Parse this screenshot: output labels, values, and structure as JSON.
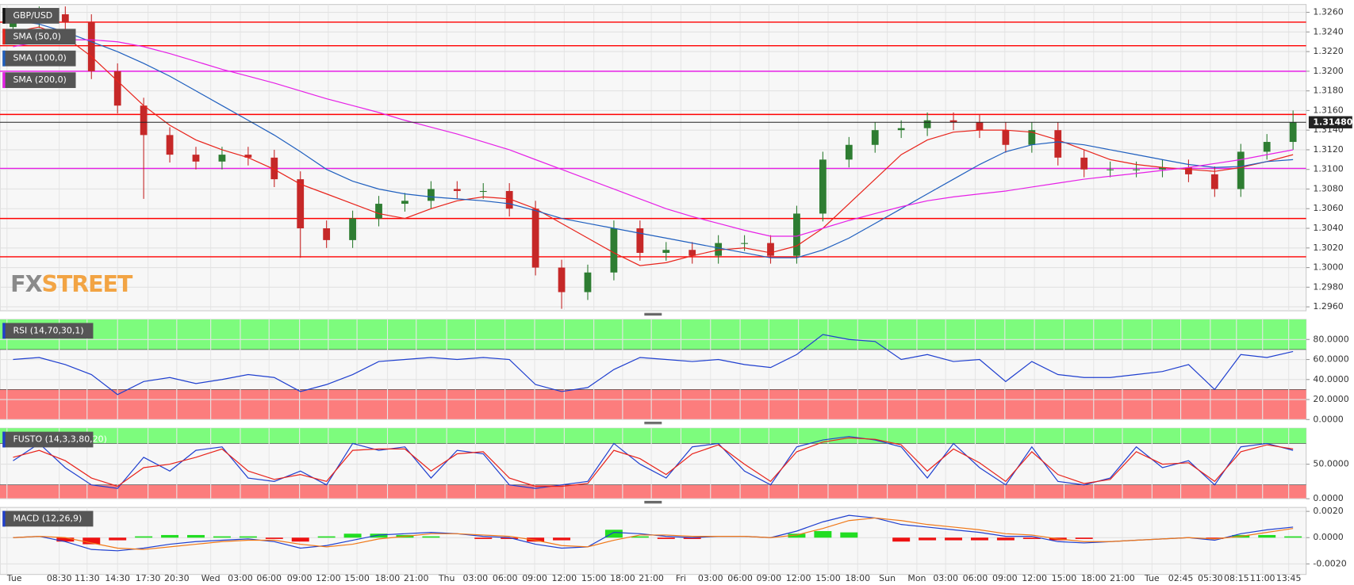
{
  "chart_data": [
    {
      "type": "candlestick",
      "title": "GBP/USD",
      "watermark": "FXSTREET",
      "time_labels": [
        "Tue",
        "08:30",
        "11:30",
        "14:30",
        "17:30",
        "20:30",
        "Wed",
        "03:00",
        "06:00",
        "09:00",
        "12:00",
        "15:00",
        "18:00",
        "21:00",
        "Thu",
        "03:00",
        "06:00",
        "09:00",
        "12:00",
        "15:00",
        "18:00",
        "21:00",
        "Fri",
        "03:00",
        "06:00",
        "09:00",
        "12:00",
        "15:00",
        "18:00",
        "Sun",
        "Mon",
        "03:00",
        "06:00",
        "09:00",
        "12:00",
        "15:00",
        "18:00",
        "21:00",
        "Tue",
        "02:45",
        "05:30",
        "08:15",
        "11:00",
        "13:45"
      ],
      "up_color": "#2e7d32",
      "down_color": "#c62828",
      "open": [
        1.3245,
        1.3252,
        1.3258,
        1.325,
        1.32,
        1.3165,
        1.3135,
        1.3115,
        1.3108,
        1.3115,
        1.3112,
        1.309,
        1.304,
        1.3028,
        1.305,
        1.3065,
        1.3068,
        1.308,
        1.3078,
        1.3078,
        1.306,
        1.3,
        1.2975,
        1.2995,
        1.304,
        1.3015,
        1.3018,
        1.3012,
        1.3025,
        1.3025,
        1.3012,
        1.3055,
        1.311,
        1.3125,
        1.314,
        1.3142,
        1.315,
        1.3148,
        1.314,
        1.3125,
        1.314,
        1.3112,
        1.31,
        1.31,
        1.31,
        1.3102,
        1.3095,
        1.308,
        1.3118,
        1.3128
      ],
      "high": [
        1.326,
        1.3266,
        1.3266,
        1.3258,
        1.3208,
        1.3173,
        1.3143,
        1.3123,
        1.3123,
        1.3123,
        1.312,
        1.3098,
        1.3048,
        1.3058,
        1.3073,
        1.3076,
        1.3088,
        1.3088,
        1.3086,
        1.3086,
        1.3068,
        1.3008,
        1.3003,
        1.3048,
        1.3048,
        1.3026,
        1.3026,
        1.3033,
        1.3033,
        1.3033,
        1.3063,
        1.3118,
        1.3133,
        1.3148,
        1.315,
        1.3158,
        1.3158,
        1.3156,
        1.3148,
        1.3148,
        1.3148,
        1.312,
        1.3108,
        1.3108,
        1.311,
        1.311,
        1.3103,
        1.3126,
        1.3136,
        1.316
      ],
      "low": [
        1.3237,
        1.3244,
        1.3242,
        1.3192,
        1.3157,
        1.307,
        1.3107,
        1.31,
        1.31,
        1.3104,
        1.3082,
        1.301,
        1.302,
        1.302,
        1.3042,
        1.3057,
        1.306,
        1.307,
        1.307,
        1.3052,
        1.2992,
        1.2958,
        1.2967,
        1.2987,
        1.3007,
        1.3007,
        1.3004,
        1.3004,
        1.3017,
        1.3004,
        1.3004,
        1.3047,
        1.3102,
        1.3117,
        1.3132,
        1.3134,
        1.314,
        1.3132,
        1.3117,
        1.3117,
        1.3104,
        1.3092,
        1.3092,
        1.3092,
        1.3092,
        1.3087,
        1.3072,
        1.3072,
        1.311,
        1.312
      ],
      "close": [
        1.3252,
        1.3258,
        1.325,
        1.32,
        1.3165,
        1.3135,
        1.3115,
        1.3108,
        1.3115,
        1.3112,
        1.309,
        1.304,
        1.3028,
        1.305,
        1.3065,
        1.3068,
        1.308,
        1.3078,
        1.3078,
        1.306,
        1.3,
        1.2975,
        1.2995,
        1.304,
        1.3015,
        1.3018,
        1.3012,
        1.3025,
        1.3025,
        1.3012,
        1.3055,
        1.311,
        1.3125,
        1.314,
        1.3142,
        1.315,
        1.3148,
        1.314,
        1.3125,
        1.314,
        1.3112,
        1.31,
        1.31,
        1.31,
        1.3102,
        1.3095,
        1.308,
        1.3118,
        1.3128,
        1.3148
      ],
      "series": [
        {
          "name": "SMA (50,0)",
          "color": "#e8231b",
          "values": [
            1.324,
            1.3245,
            1.3235,
            1.3215,
            1.319,
            1.3165,
            1.3145,
            1.313,
            1.312,
            1.3112,
            1.31,
            1.3085,
            1.3075,
            1.3065,
            1.3055,
            1.305,
            1.306,
            1.3068,
            1.3072,
            1.307,
            1.306,
            1.3045,
            1.303,
            1.3015,
            1.3002,
            1.3005,
            1.3012,
            1.3018,
            1.302,
            1.3015,
            1.3022,
            1.304,
            1.3065,
            1.309,
            1.3115,
            1.313,
            1.3138,
            1.314,
            1.314,
            1.3138,
            1.313,
            1.312,
            1.311,
            1.3105,
            1.3102,
            1.31,
            1.3098,
            1.3102,
            1.3108,
            1.3115
          ]
        },
        {
          "name": "SMA (100,0)",
          "color": "#1f5fbf",
          "values": [
            1.3252,
            1.3248,
            1.324,
            1.323,
            1.322,
            1.3208,
            1.3195,
            1.318,
            1.3165,
            1.315,
            1.3135,
            1.3118,
            1.31,
            1.3088,
            1.308,
            1.3075,
            1.3072,
            1.307,
            1.3068,
            1.3065,
            1.3058,
            1.305,
            1.3045,
            1.304,
            1.3035,
            1.303,
            1.3025,
            1.302,
            1.3015,
            1.301,
            1.301,
            1.3018,
            1.303,
            1.3045,
            1.306,
            1.3075,
            1.309,
            1.3105,
            1.3118,
            1.3125,
            1.3128,
            1.3125,
            1.312,
            1.3115,
            1.311,
            1.3105,
            1.3102,
            1.3103,
            1.3108,
            1.311
          ]
        },
        {
          "name": "SMA (200,0)",
          "color": "#e620e6",
          "values": [
            1.3225,
            1.323,
            1.3232,
            1.3232,
            1.323,
            1.3225,
            1.3218,
            1.321,
            1.3202,
            1.3195,
            1.3188,
            1.318,
            1.3172,
            1.3165,
            1.3158,
            1.315,
            1.3143,
            1.3136,
            1.3128,
            1.312,
            1.311,
            1.31,
            1.309,
            1.308,
            1.307,
            1.306,
            1.3052,
            1.3045,
            1.3038,
            1.3032,
            1.3032,
            1.304,
            1.3048,
            1.3055,
            1.3062,
            1.3068,
            1.3072,
            1.3075,
            1.3078,
            1.3082,
            1.3086,
            1.309,
            1.3093,
            1.3096,
            1.3099,
            1.3102,
            1.3106,
            1.311,
            1.3115,
            1.312
          ]
        }
      ],
      "levels": [
        {
          "value": 1.325,
          "color": "#ff0000"
        },
        {
          "value": 1.3226,
          "color": "#ff0000"
        },
        {
          "value": 1.32,
          "color": "#e620e6"
        },
        {
          "value": 1.3156,
          "color": "#ff0000"
        },
        {
          "value": 1.3101,
          "color": "#e620e6"
        },
        {
          "value": 1.305,
          "color": "#ff0000"
        },
        {
          "value": 1.3011,
          "color": "#ff0000"
        }
      ],
      "last_price": {
        "value": 1.3148,
        "label": "1.31480"
      },
      "ylim": [
        1.2956,
        1.3268
      ],
      "yticks": [
        {
          "value": 1.296,
          "label": "1.2960"
        },
        {
          "value": 1.298,
          "label": "1.2980"
        },
        {
          "value": 1.3,
          "label": "1.3000"
        },
        {
          "value": 1.302,
          "label": "1.3020"
        },
        {
          "value": 1.304,
          "label": "1.3040"
        },
        {
          "value": 1.306,
          "label": "1.3060"
        },
        {
          "value": 1.308,
          "label": "1.3080"
        },
        {
          "value": 1.31,
          "label": "1.3100"
        },
        {
          "value": 1.312,
          "label": "1.3120"
        },
        {
          "value": 1.314,
          "label": "1.3140"
        },
        {
          "value": 1.316,
          "label": "1.3160"
        },
        {
          "value": 1.318,
          "label": "1.3180"
        },
        {
          "value": 1.32,
          "label": "1.3200"
        },
        {
          "value": 1.322,
          "label": "1.3220"
        },
        {
          "value": 1.324,
          "label": "1.3240"
        },
        {
          "value": 1.326,
          "label": "1.3260"
        }
      ],
      "grid": true
    },
    {
      "type": "line",
      "title": "RSI (14,70,30,1)",
      "overbought": 70,
      "oversold": 30,
      "series": [
        {
          "color": "#1f3fcf",
          "values": [
            60,
            62,
            55,
            45,
            25,
            38,
            42,
            36,
            40,
            45,
            42,
            28,
            35,
            45,
            58,
            60,
            62,
            60,
            62,
            60,
            35,
            28,
            32,
            50,
            62,
            60,
            58,
            60,
            55,
            52,
            65,
            85,
            80,
            78,
            60,
            65,
            58,
            60,
            38,
            58,
            45,
            42,
            42,
            45,
            48,
            55,
            30,
            65,
            62,
            68
          ]
        }
      ],
      "ylim": [
        0,
        100
      ],
      "yticks": [
        {
          "value": 0,
          "label": "0.0000"
        },
        {
          "value": 20,
          "label": "20.0000"
        },
        {
          "value": 40,
          "label": "40.0000"
        },
        {
          "value": 60,
          "label": "60.0000"
        },
        {
          "value": 80,
          "label": "80.0000"
        }
      ],
      "grid": true
    },
    {
      "type": "line",
      "title": "FUSTO (14,3,3,80,20)",
      "overbought": 80,
      "oversold": 20,
      "series": [
        {
          "color": "#1f3fcf",
          "values": [
            55,
            80,
            45,
            20,
            15,
            60,
            40,
            70,
            75,
            30,
            25,
            40,
            20,
            80,
            70,
            75,
            30,
            70,
            65,
            20,
            15,
            20,
            25,
            80,
            50,
            30,
            75,
            80,
            40,
            20,
            75,
            85,
            90,
            85,
            75,
            30,
            80,
            45,
            20,
            75,
            25,
            20,
            30,
            75,
            45,
            55,
            20,
            75,
            80,
            70
          ]
        },
        {
          "color": "#e8231b",
          "values": [
            60,
            70,
            55,
            30,
            18,
            45,
            50,
            60,
            72,
            40,
            28,
            35,
            25,
            70,
            72,
            72,
            40,
            65,
            68,
            30,
            18,
            18,
            22,
            70,
            58,
            35,
            65,
            78,
            50,
            25,
            68,
            82,
            88,
            86,
            78,
            40,
            72,
            52,
            25,
            68,
            35,
            22,
            28,
            68,
            50,
            52,
            25,
            68,
            78,
            72
          ]
        }
      ],
      "ylim": [
        0,
        102
      ],
      "yticks": [
        {
          "value": 0,
          "label": "0.0000"
        },
        {
          "value": 50,
          "label": "50.0000"
        }
      ],
      "grid": true
    },
    {
      "type": "macd",
      "title": "MACD (12,26,9)",
      "up_color": "#22dd22",
      "down_color": "#ee1111",
      "histogram": [
        0,
        0,
        -0.0003,
        -0.0005,
        -0.0002,
        0.0001,
        0.0002,
        0.0002,
        0.0001,
        0.0001,
        -0.0001,
        -0.0003,
        0.0001,
        0.0003,
        0.0003,
        0.0002,
        0.0001,
        0,
        -0.0001,
        -0.0001,
        -0.0003,
        -0.0002,
        0,
        0.0006,
        0.0001,
        -0.0001,
        -0.0001,
        0,
        0,
        0,
        0.0003,
        0.0005,
        0.0004,
        0,
        -0.0003,
        -0.0002,
        -0.0002,
        -0.0002,
        -0.0002,
        -0.0001,
        -0.0002,
        -0.0001,
        0,
        0,
        0,
        0,
        -0.0001,
        0.0002,
        0.0002,
        0.0001
      ],
      "series": [
        {
          "color": "#1f3fcf",
          "values": [
            0,
            0.0001,
            -0.0003,
            -0.0009,
            -0.001,
            -0.0008,
            -0.0005,
            -0.0003,
            -0.0002,
            -0.0001,
            -0.0003,
            -0.0008,
            -0.0006,
            -0.0002,
            0.0002,
            0.0003,
            0.0004,
            0.0003,
            0.0001,
            0,
            -0.0005,
            -0.0008,
            -0.0007,
            0.0004,
            0.0003,
            0.0001,
            0,
            0.0001,
            0.0001,
            0,
            0.0005,
            0.0012,
            0.0017,
            0.0015,
            0.001,
            0.0008,
            0.0006,
            0.0004,
            0.0001,
            0.0001,
            -0.0003,
            -0.0004,
            -0.0003,
            -0.0002,
            -0.0001,
            0,
            -0.0002,
            0.0003,
            0.0006,
            0.0008
          ]
        },
        {
          "color": "#f07818",
          "values": [
            0,
            0.0001,
            0,
            -0.0004,
            -0.0008,
            -0.0009,
            -0.0007,
            -0.0005,
            -0.0003,
            -0.0002,
            -0.0002,
            -0.0005,
            -0.0007,
            -0.0005,
            -0.0001,
            0.0001,
            0.0003,
            0.0003,
            0.0002,
            0.0001,
            -0.0002,
            -0.0006,
            -0.0007,
            -0.0002,
            0.0002,
            0.0002,
            0.0001,
            0.0001,
            0.0001,
            0,
            0.0002,
            0.0007,
            0.0013,
            0.0015,
            0.0013,
            0.001,
            0.0008,
            0.0006,
            0.0003,
            0.0002,
            -0.0001,
            -0.0003,
            -0.0003,
            -0.0002,
            -0.0001,
            0,
            -0.0001,
            0.0001,
            0.0004,
            0.0007
          ]
        }
      ],
      "ylim": [
        -0.0028,
        0.0023
      ],
      "yticks": [
        {
          "value": -0.002,
          "label": "-0.0020"
        },
        {
          "value": 0,
          "label": "0.0000"
        },
        {
          "value": 0.002,
          "label": "0.0020"
        }
      ],
      "grid": true
    }
  ]
}
